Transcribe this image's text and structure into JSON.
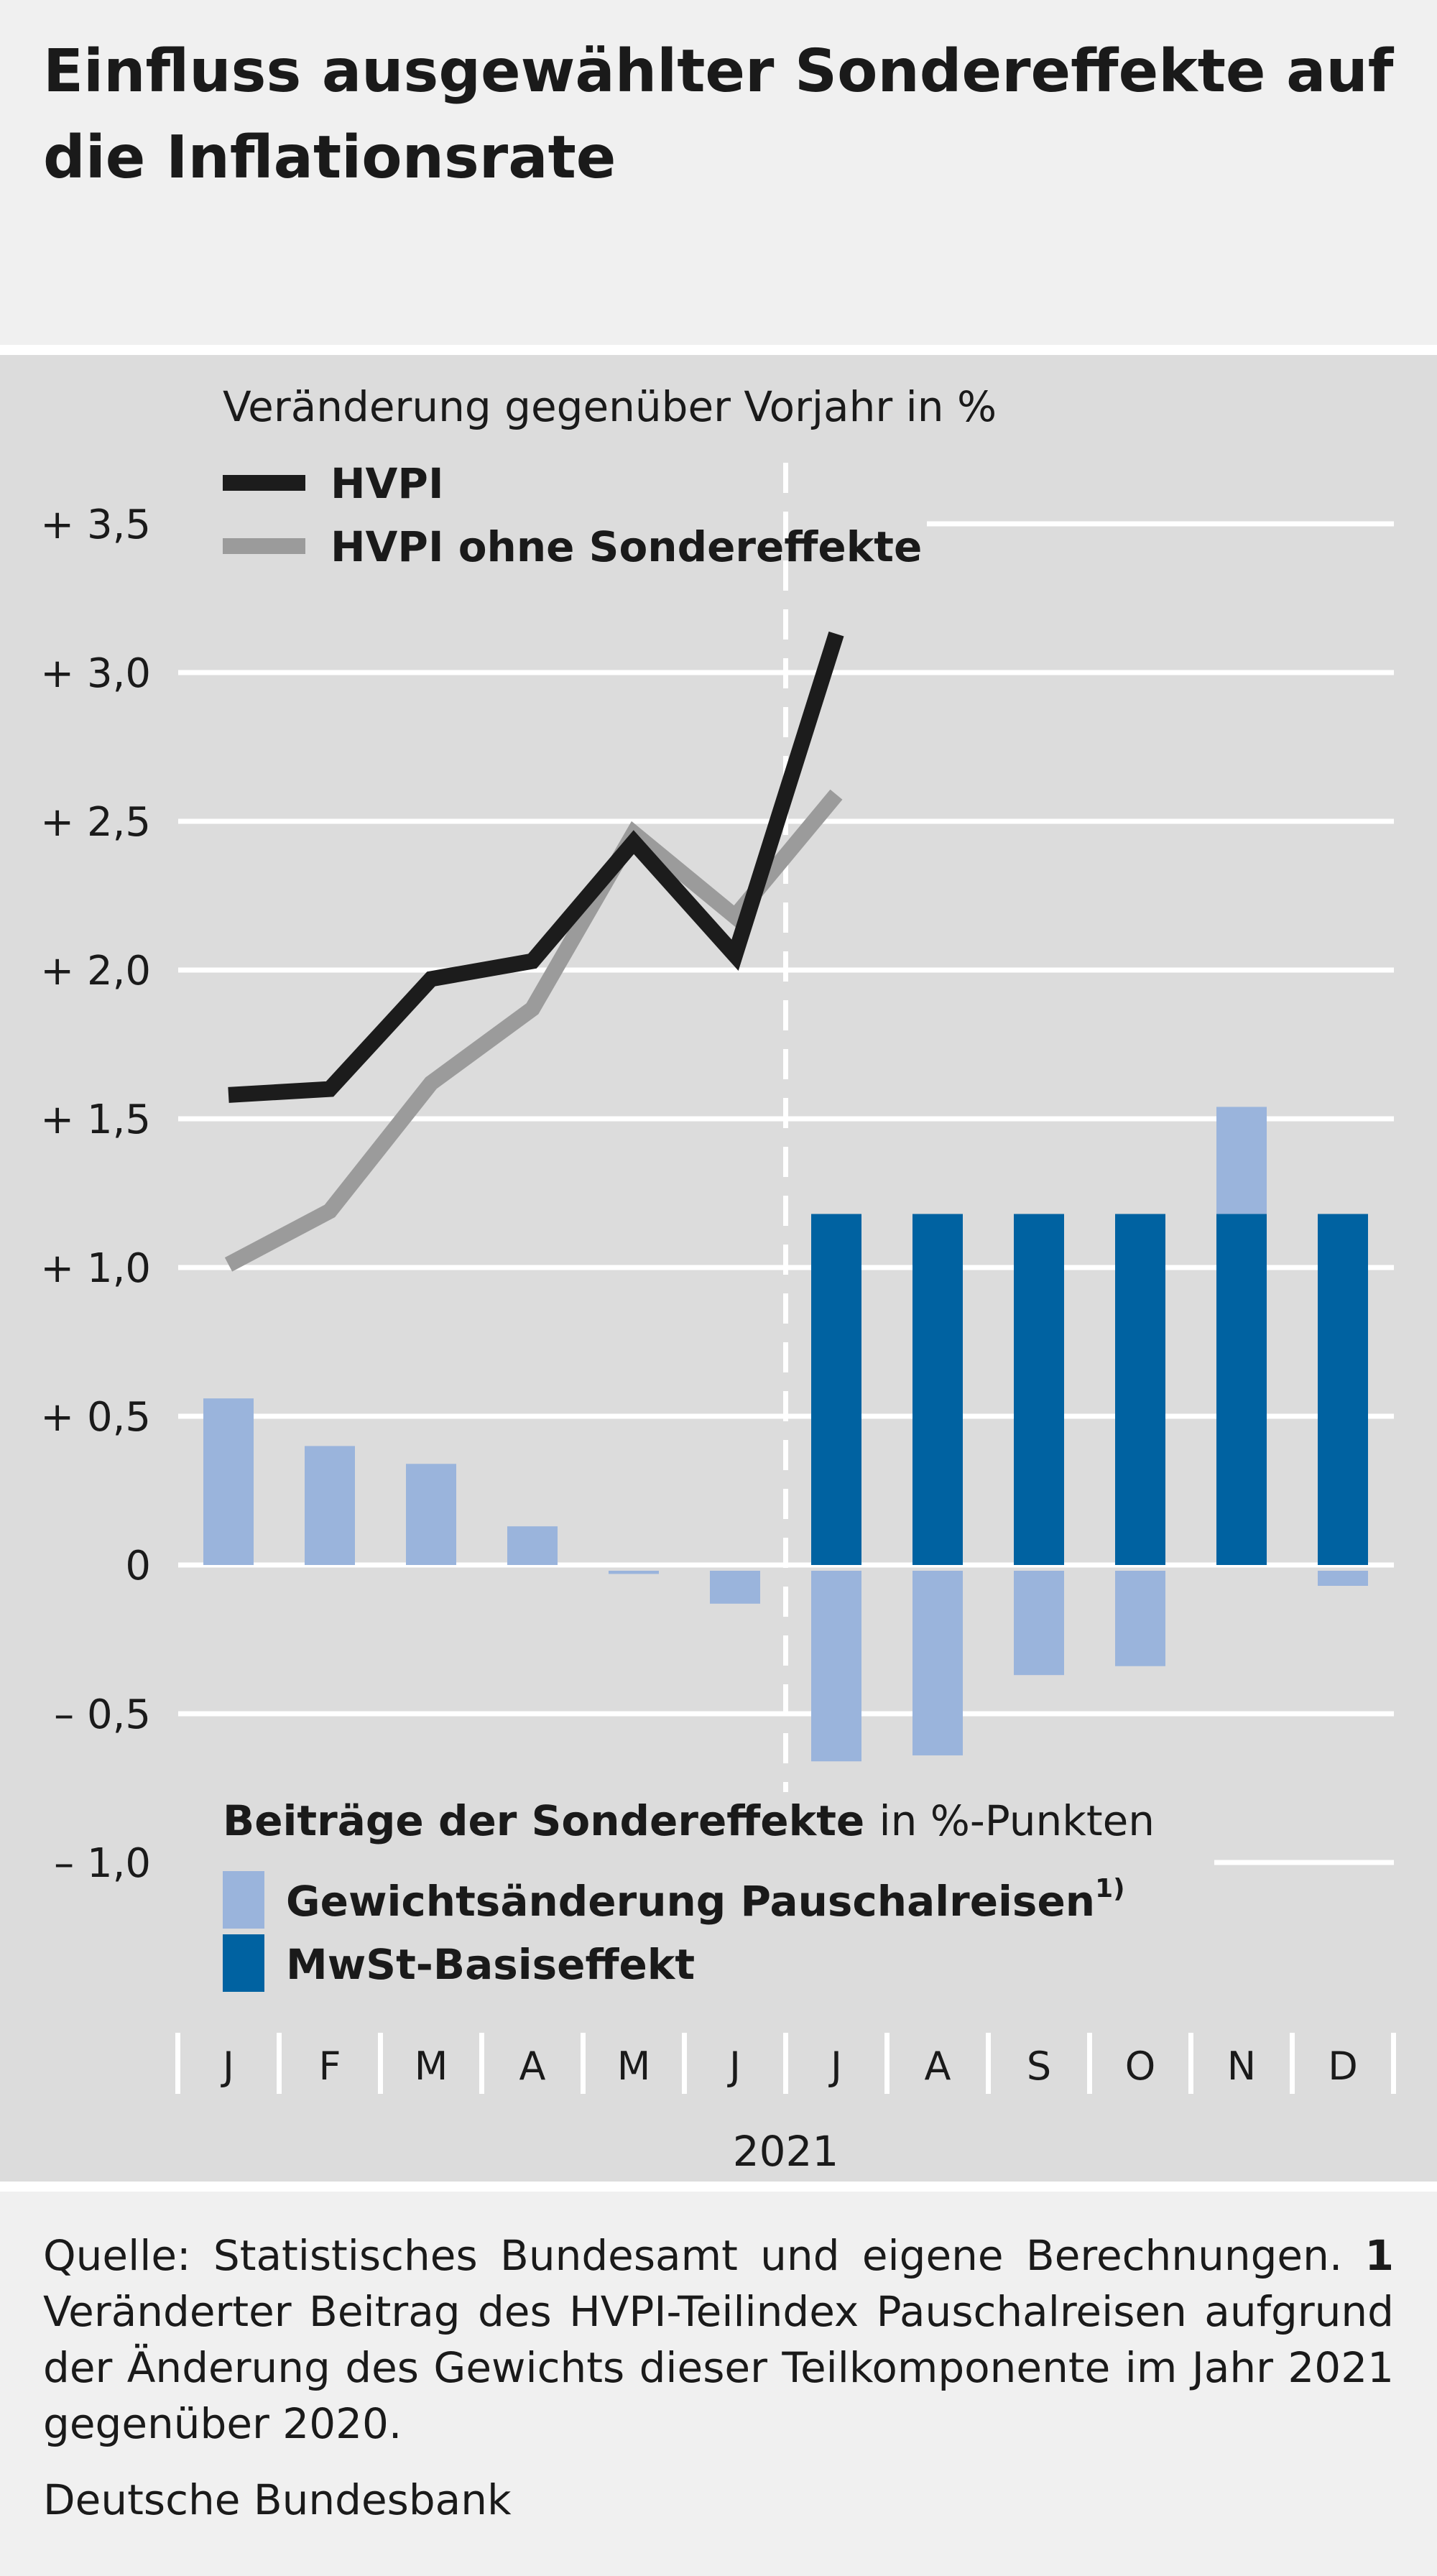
{
  "title": "Einfluss ausgewählter Sondereffekte auf die Inflationsrate",
  "colors": {
    "hvpi": "#1c1c1c",
    "hvpi_ohne": "#9b9b9b",
    "pauschalreisen": "#9ab4dc",
    "mwst": "#0062a1",
    "panel": "#dcdcdc",
    "grid": "#ffffff"
  },
  "chart_data": {
    "type": "bar",
    "top_label": "Veränderung gegenüber Vorjahr in %",
    "categories": [
      "J",
      "F",
      "M",
      "A",
      "M",
      "J",
      "J",
      "A",
      "S",
      "O",
      "N",
      "D"
    ],
    "year_label": "2021",
    "ylim": [
      -1.0,
      3.5
    ],
    "yticks": [
      {
        "value": 3.5,
        "label": "+ 3,5"
      },
      {
        "value": 3.0,
        "label": "+ 3,0"
      },
      {
        "value": 2.5,
        "label": "+ 2,5"
      },
      {
        "value": 2.0,
        "label": "+ 2,0"
      },
      {
        "value": 1.5,
        "label": "+ 1,5"
      },
      {
        "value": 1.0,
        "label": "+ 1,0"
      },
      {
        "value": 0.5,
        "label": "+ 0,5"
      },
      {
        "value": 0,
        "label": "0"
      },
      {
        "value": -0.5,
        "label": "– 0,5"
      },
      {
        "value": -1.0,
        "label": "– 1,0"
      }
    ],
    "grid": true,
    "divider_after_category": 6,
    "lines": [
      {
        "name": "HVPI",
        "values": [
          1.58,
          1.6,
          1.97,
          2.03,
          2.43,
          2.05,
          3.13
        ],
        "color": "#1c1c1c"
      },
      {
        "name": "HVPI ohne Sondereffekte",
        "values": [
          1.01,
          1.19,
          1.62,
          1.87,
          2.46,
          2.18,
          2.59
        ],
        "color": "#9b9b9b"
      }
    ],
    "bar_legend_title_bold": "Beiträge der Sondereffekte",
    "bar_legend_title_rest": "in %-Punkten",
    "bar_series": [
      {
        "name": "Gewichtsänderung Pauschalreisen",
        "superscript": "1)",
        "color": "#9ab4dc",
        "values": [
          0.56,
          0.4,
          0.34,
          0.13,
          -0.03,
          -0.13,
          -0.66,
          -0.64,
          -0.37,
          -0.34,
          0.36,
          -0.07
        ]
      },
      {
        "name": "MwSt-Basiseffekt",
        "color": "#0062a1",
        "values": [
          0,
          0,
          0,
          0,
          0,
          0,
          1.18,
          1.18,
          1.18,
          1.18,
          1.18,
          1.18
        ]
      }
    ]
  },
  "footer": {
    "source": "Quelle: Statistisches Bundesamt und eigene Berechnungen.",
    "footnote_number": "1",
    "footnote_text": "Veränderter Beitrag des HVPI-Teilindex Pauschalreisen aufgrund der Änderung des Gewichts dieser Teilkomponente im Jahr 2021 gegenüber 2020.",
    "publisher": "Deutsche Bundesbank"
  }
}
